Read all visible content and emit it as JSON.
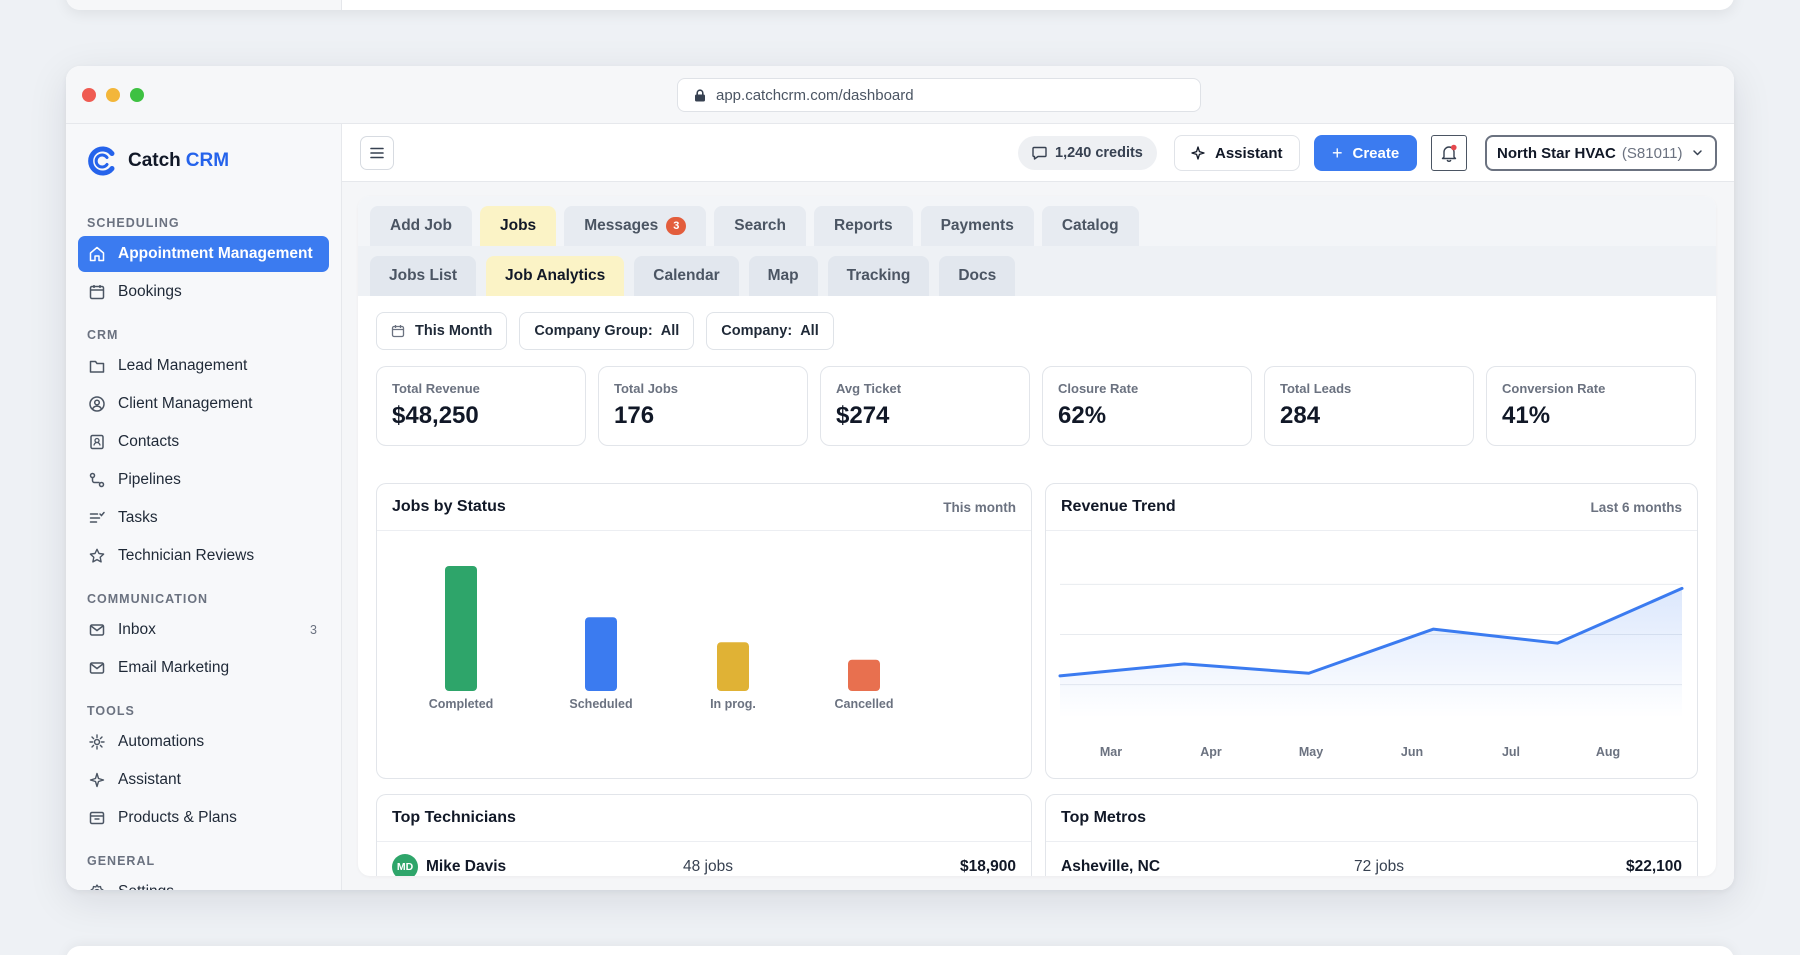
{
  "browser": {
    "url": "app.catchcrm.com/dashboard"
  },
  "brand": {
    "name": "Catch",
    "suffix": "CRM"
  },
  "sidebar": {
    "sections": [
      {
        "label": "SCHEDULING",
        "items": [
          {
            "label": "Appointment Management",
            "icon": "home-icon",
            "active": true
          },
          {
            "label": "Bookings",
            "icon": "calendar-icon"
          }
        ]
      },
      {
        "label": "CRM",
        "items": [
          {
            "label": "Lead Management",
            "icon": "folder-icon"
          },
          {
            "label": "Client Management",
            "icon": "user-circle-icon"
          },
          {
            "label": "Contacts",
            "icon": "contact-card-icon"
          },
          {
            "label": "Pipelines",
            "icon": "pipeline-icon"
          },
          {
            "label": "Tasks",
            "icon": "tasks-icon"
          },
          {
            "label": "Technician Reviews",
            "icon": "star-icon"
          }
        ]
      },
      {
        "label": "COMMUNICATION",
        "items": [
          {
            "label": "Inbox",
            "icon": "mail-icon",
            "count": "3"
          },
          {
            "label": "Email Marketing",
            "icon": "mail-icon"
          }
        ]
      },
      {
        "label": "TOOLS",
        "items": [
          {
            "label": "Automations",
            "icon": "automation-icon"
          },
          {
            "label": "Assistant",
            "icon": "sparkle-icon"
          },
          {
            "label": "Products & Plans",
            "icon": "box-icon"
          }
        ]
      },
      {
        "label": "GENERAL",
        "items": [
          {
            "label": "Settings",
            "icon": "gear-icon"
          }
        ]
      }
    ]
  },
  "topbar": {
    "credits": "1,240 credits",
    "assistant": "Assistant",
    "create": "Create",
    "org": {
      "name": "North Star HVAC",
      "code": "(S81011)"
    }
  },
  "tabs": [
    {
      "label": "Add Job"
    },
    {
      "label": "Jobs",
      "active": true
    },
    {
      "label": "Messages",
      "badge": "3"
    },
    {
      "label": "Search"
    },
    {
      "label": "Reports"
    },
    {
      "label": "Payments"
    },
    {
      "label": "Catalog"
    }
  ],
  "subtabs": [
    {
      "label": "Jobs List"
    },
    {
      "label": "Job Analytics",
      "active": true
    },
    {
      "label": "Calendar"
    },
    {
      "label": "Map"
    },
    {
      "label": "Tracking"
    },
    {
      "label": "Docs"
    }
  ],
  "filters": {
    "period": "This Month",
    "company_group": {
      "label": "Company Group:",
      "value": "All"
    },
    "company": {
      "label": "Company:",
      "value": "All"
    }
  },
  "kpis": [
    {
      "label": "Total Revenue",
      "value": "$48,250"
    },
    {
      "label": "Total Jobs",
      "value": "176"
    },
    {
      "label": "Avg Ticket",
      "value": "$274"
    },
    {
      "label": "Closure Rate",
      "value": "62%"
    },
    {
      "label": "Total Leads",
      "value": "284"
    },
    {
      "label": "Conversion Rate",
      "value": "41%"
    }
  ],
  "jobs_card": {
    "title": "Jobs by Status",
    "meta": "This month"
  },
  "revenue_card": {
    "title": "Revenue Trend",
    "meta": "Last 6 months"
  },
  "technicians_card": {
    "title": "Top Technicians",
    "rows": [
      {
        "initials": "MD",
        "name": "Mike Davis",
        "jobs": "48 jobs",
        "amount": "$18,900"
      }
    ]
  },
  "metros_card": {
    "title": "Top Metros",
    "rows": [
      {
        "name": "Asheville, NC",
        "jobs": "72 jobs",
        "amount": "$22,100"
      }
    ]
  },
  "chart_data": [
    {
      "type": "bar",
      "categories": [
        "Completed",
        "Scheduled",
        "In prog.",
        "Cancelled"
      ],
      "values": [
        100,
        59,
        39,
        25
      ],
      "colors": [
        "#2ea56a",
        "#3b7bf0",
        "#e0b235",
        "#e8704f"
      ],
      "ylim": [
        0,
        100
      ]
    },
    {
      "type": "area",
      "categories": [
        "Mar",
        "Apr",
        "May",
        "Jun",
        "Jul",
        "Aug"
      ],
      "values": [
        6.3,
        8.1,
        6.7,
        13.3,
        11.2,
        19.4
      ],
      "ylim": [
        0,
        25
      ],
      "grid": true,
      "color": "#3b7bf0"
    }
  ]
}
